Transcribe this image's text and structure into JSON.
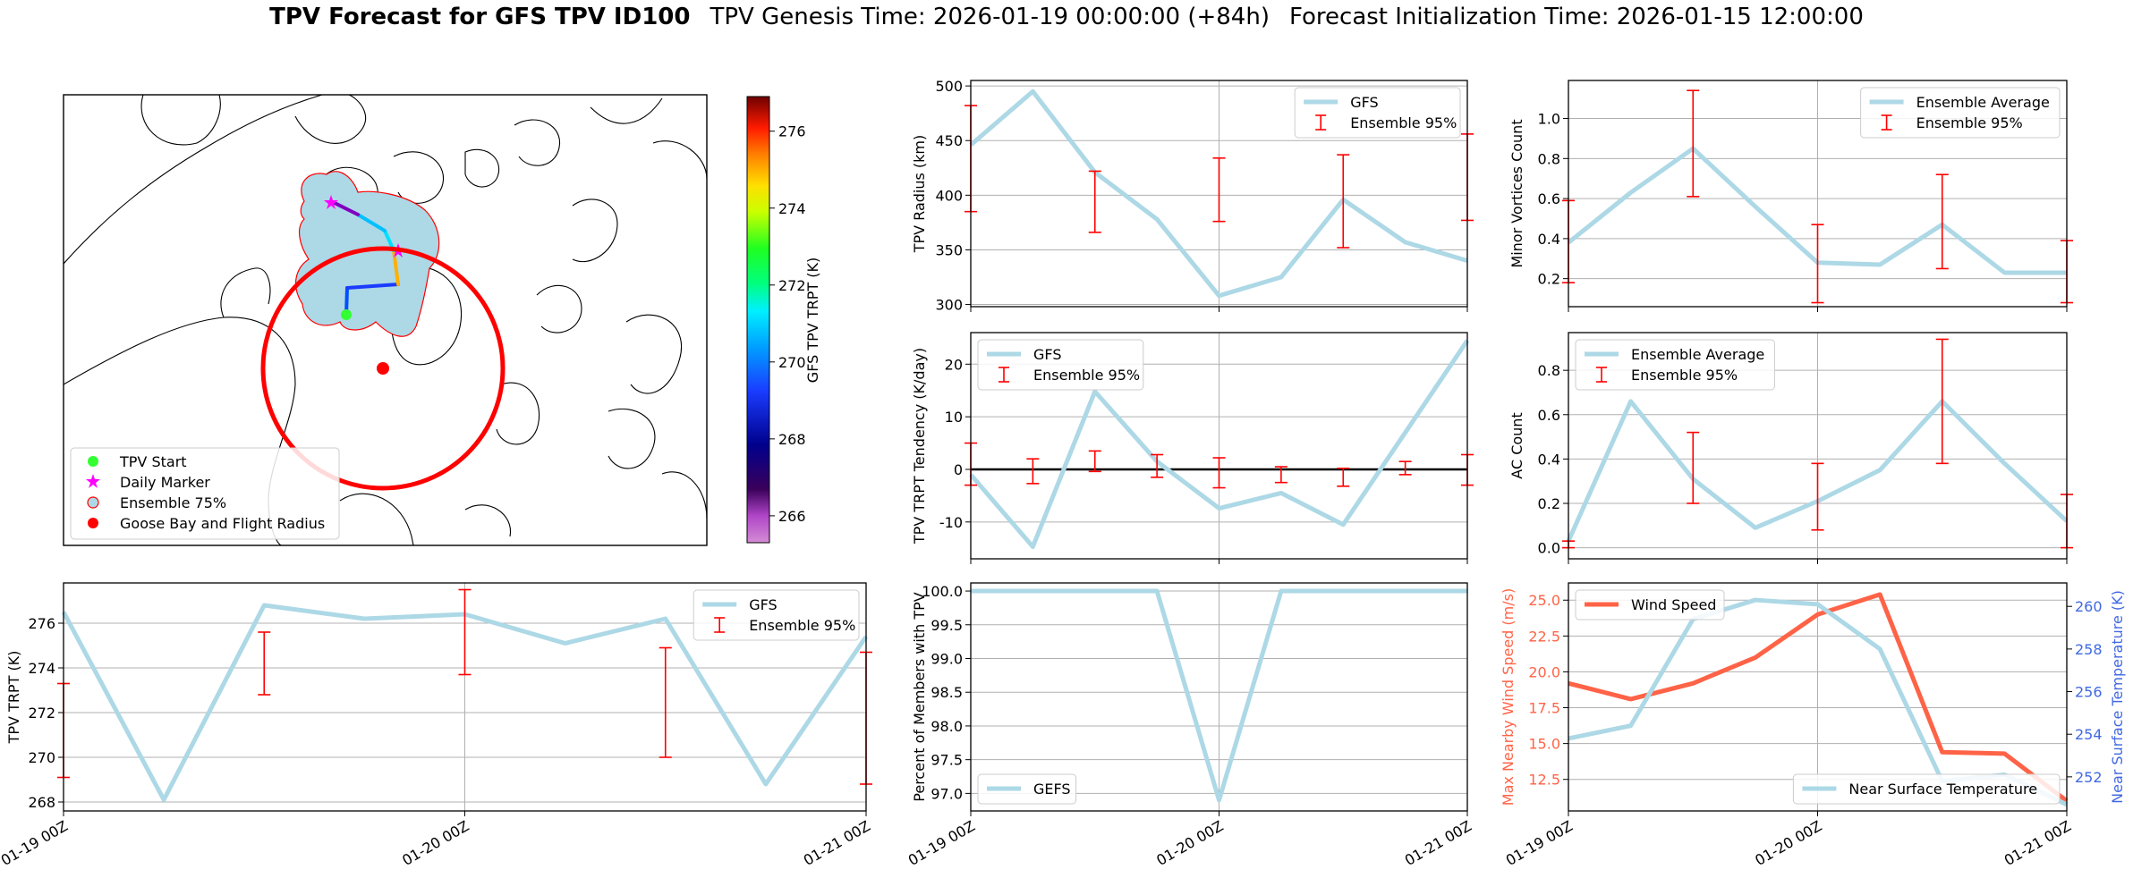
{
  "title": {
    "bold": "TPV Forecast for GFS TPV ID100",
    "genesis": "TPV Genesis Time: 2026-01-19 00:00:00 (+84h)",
    "init": "Forecast Initialization Time: 2026-01-15 12:00:00"
  },
  "colors": {
    "line": "#add8e6",
    "error": "#ff0000",
    "wind": "#ff6347",
    "temp_axis": "#4169e1",
    "ensemble_fill": "#add8e6",
    "track_colormap": "gist_ncar-like"
  },
  "map": {
    "legend": [
      "TPV Start",
      "Daily Marker",
      "Ensemble 75%",
      "Goose Bay and Flight Radius"
    ],
    "colorbar": {
      "label": "GFS TPV TRPT (K)",
      "ticks": [
        "276",
        "274",
        "272",
        "270",
        "268",
        "266"
      ],
      "range": [
        265.3,
        276.9
      ]
    }
  },
  "chart_data": [
    {
      "type": "line",
      "id": "tpv-radius",
      "ylabel": "TPV Radius (km)",
      "xlabel": "",
      "x_ticks": [
        "01-19 00Z",
        "01-20 00Z",
        "01-21 00Z"
      ],
      "show_x_tick_labels": false,
      "x": [
        0,
        0.125,
        0.25,
        0.375,
        0.5,
        0.625,
        0.75,
        0.875,
        1.0
      ],
      "xlim": [
        0,
        1
      ],
      "ylim": [
        298,
        505
      ],
      "y_ticks": [
        300,
        350,
        400,
        450,
        500
      ],
      "grid": true,
      "legend_position": "top-right",
      "series": [
        {
          "name": "GFS",
          "kind": "line",
          "values": [
            446,
            495,
            421,
            378,
            308,
            325,
            396,
            357,
            340
          ]
        },
        {
          "name": "Ensemble 95%",
          "kind": "errorbar",
          "x": [
            0,
            0.25,
            0.5,
            0.75,
            1.0
          ],
          "low": [
            385,
            366,
            376,
            352,
            377
          ],
          "high": [
            482,
            422,
            434,
            437,
            456
          ]
        }
      ]
    },
    {
      "type": "line",
      "id": "minor-vortices",
      "ylabel": "Minor Vortices Count",
      "xlabel": "",
      "x_ticks": [
        "01-19 00Z",
        "01-20 00Z",
        "01-21 00Z"
      ],
      "show_x_tick_labels": false,
      "x": [
        0,
        0.125,
        0.25,
        0.375,
        0.5,
        0.625,
        0.75,
        0.875,
        1.0
      ],
      "xlim": [
        0,
        1
      ],
      "ylim": [
        0.06,
        1.19
      ],
      "y_ticks": [
        0.2,
        0.4,
        0.6,
        0.8,
        1.0
      ],
      "grid": true,
      "legend_position": "top-right",
      "series": [
        {
          "name": "Ensemble Average",
          "kind": "line",
          "values": [
            0.38,
            0.63,
            0.85,
            0.56,
            0.28,
            0.27,
            0.47,
            0.23,
            0.23
          ]
        },
        {
          "name": "Ensemble 95%",
          "kind": "errorbar",
          "x": [
            0,
            0.25,
            0.5,
            0.75,
            1.0
          ],
          "low": [
            0.18,
            0.61,
            0.08,
            0.25,
            0.08
          ],
          "high": [
            0.59,
            1.14,
            0.47,
            0.72,
            0.39
          ]
        }
      ]
    },
    {
      "type": "line",
      "id": "trpt-tendency",
      "ylabel": "TPV TRPT Tendency (K/day)",
      "xlabel": "",
      "x_ticks": [
        "01-19 00Z",
        "01-20 00Z",
        "01-21 00Z"
      ],
      "show_x_tick_labels": false,
      "x": [
        0,
        0.125,
        0.25,
        0.375,
        0.5,
        0.625,
        0.75,
        0.875,
        1.0
      ],
      "xlim": [
        0,
        1
      ],
      "ylim": [
        -17,
        26
      ],
      "y_ticks": [
        -10,
        0,
        10,
        20
      ],
      "zero_line": true,
      "grid": true,
      "legend_position": "top-left",
      "series": [
        {
          "name": "GFS",
          "kind": "line",
          "values": [
            -1,
            -14.7,
            14.8,
            1.5,
            -7.4,
            -4.5,
            -10.5,
            7,
            24.5
          ]
        },
        {
          "name": "Ensemble 95%",
          "kind": "errorbar",
          "x": [
            0,
            0.125,
            0.25,
            0.375,
            0.5,
            0.625,
            0.75,
            0.875,
            1.0
          ],
          "low": [
            -3,
            -2.7,
            -0.4,
            -1.5,
            -3.5,
            -2.5,
            -3.2,
            -1,
            -3
          ],
          "high": [
            5,
            2,
            3.5,
            2.8,
            2.2,
            0.5,
            0.2,
            1.5,
            2.8
          ]
        }
      ]
    },
    {
      "type": "line",
      "id": "ac-count",
      "ylabel": "AC Count",
      "xlabel": "",
      "x_ticks": [
        "01-19 00Z",
        "01-20 00Z",
        "01-21 00Z"
      ],
      "show_x_tick_labels": false,
      "x": [
        0,
        0.125,
        0.25,
        0.375,
        0.5,
        0.625,
        0.75,
        0.875,
        1.0
      ],
      "xlim": [
        0,
        1
      ],
      "ylim": [
        -0.05,
        0.97
      ],
      "y_ticks": [
        0.0,
        0.2,
        0.4,
        0.6,
        0.8
      ],
      "grid": true,
      "legend_position": "top-left",
      "series": [
        {
          "name": "Ensemble Average",
          "kind": "line",
          "values": [
            0.03,
            0.66,
            0.31,
            0.09,
            0.21,
            0.35,
            0.66,
            0.38,
            0.12
          ]
        },
        {
          "name": "Ensemble 95%",
          "kind": "errorbar",
          "x": [
            0,
            0.25,
            0.5,
            0.75,
            1.0
          ],
          "low": [
            0.0,
            0.2,
            0.08,
            0.38,
            0.0
          ],
          "high": [
            0.03,
            0.52,
            0.38,
            0.94,
            0.24
          ]
        }
      ]
    },
    {
      "type": "line",
      "id": "tpv-trpt",
      "ylabel": "TPV TRPT (K)",
      "xlabel": "",
      "x_ticks": [
        "01-19 00Z",
        "01-20 00Z",
        "01-21 00Z"
      ],
      "show_x_tick_labels": true,
      "x": [
        0,
        0.125,
        0.25,
        0.375,
        0.5,
        0.625,
        0.75,
        0.875,
        1.0
      ],
      "xlim": [
        0,
        1
      ],
      "ylim": [
        267.6,
        277.8
      ],
      "y_ticks": [
        268,
        270,
        272,
        274,
        276
      ],
      "grid": true,
      "legend_position": "top-right",
      "series": [
        {
          "name": "GFS",
          "kind": "line",
          "values": [
            276.5,
            268.1,
            276.8,
            276.2,
            276.4,
            275.1,
            276.2,
            268.8,
            275.4
          ]
        },
        {
          "name": "Ensemble 95%",
          "kind": "errorbar",
          "x": [
            0,
            0.25,
            0.5,
            0.75,
            1.0
          ],
          "low": [
            269.1,
            272.8,
            273.7,
            270.0,
            268.8
          ],
          "high": [
            273.3,
            275.6,
            277.5,
            274.9,
            274.7
          ]
        }
      ]
    },
    {
      "type": "line",
      "id": "percent-members",
      "ylabel": "Percent of Members with TPV",
      "xlabel": "",
      "x_ticks": [
        "01-19 00Z",
        "01-20 00Z",
        "01-21 00Z"
      ],
      "show_x_tick_labels": true,
      "x": [
        0,
        0.125,
        0.25,
        0.375,
        0.5,
        0.625,
        0.75,
        0.875,
        1.0
      ],
      "xlim": [
        0,
        1
      ],
      "ylim": [
        96.74,
        100.12
      ],
      "y_ticks": [
        97.0,
        97.5,
        98.0,
        98.5,
        99.0,
        99.5,
        100.0
      ],
      "grid": true,
      "legend_position": "bottom-left",
      "series": [
        {
          "name": "GEFS",
          "kind": "line",
          "values": [
            100,
            100,
            100,
            100,
            96.9,
            100,
            100,
            100,
            100
          ]
        }
      ]
    },
    {
      "type": "line",
      "id": "wind-temp",
      "ylabel": "Max Nearby Wind Speed (m/s)",
      "y2label": "Near Surface Temperature (K)",
      "xlabel": "",
      "x_ticks": [
        "01-19 00Z",
        "01-20 00Z",
        "01-21 00Z"
      ],
      "show_x_tick_labels": true,
      "x": [
        0,
        0.125,
        0.25,
        0.375,
        0.5,
        0.625,
        0.75,
        0.875,
        1.0
      ],
      "xlim": [
        0,
        1
      ],
      "ylim": [
        10.3,
        26.2
      ],
      "y_ticks": [
        12.5,
        15.0,
        17.5,
        20.0,
        22.5,
        25.0
      ],
      "y2lim": [
        250.4,
        261.1
      ],
      "y2_ticks": [
        252,
        254,
        256,
        258,
        260
      ],
      "grid": true,
      "legend_position": "top-left / bottom-right",
      "series": [
        {
          "name": "Wind Speed",
          "kind": "line",
          "axis": "left",
          "values": [
            19.2,
            18.1,
            19.2,
            21,
            24,
            25.4,
            14.4,
            14.3,
            11
          ]
        },
        {
          "name": "Near Surface Temperature",
          "kind": "line",
          "axis": "right",
          "values": [
            253.8,
            254.4,
            259.4,
            260.3,
            260.1,
            258,
            251.8,
            252.1,
            250.7
          ]
        }
      ]
    }
  ]
}
